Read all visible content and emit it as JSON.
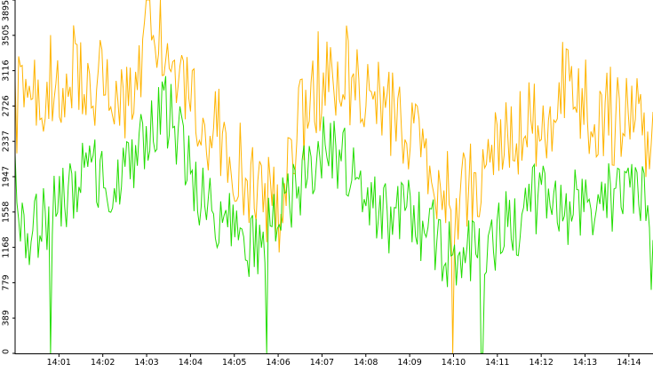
{
  "chart_data": {
    "type": "line",
    "title": "",
    "xlabel": "",
    "ylabel": "",
    "ylim": [
      0,
      3895
    ],
    "y_ticks": [
      "0",
      "389",
      "779",
      "1168",
      "1558",
      "1947",
      "2337",
      "2726",
      "3116",
      "3505",
      "3895"
    ],
    "x_ticks": [
      "14:01",
      "14:02",
      "14:03",
      "14:04",
      "14:05",
      "14:06",
      "14:07",
      "14:08",
      "14:09",
      "14:10",
      "14:11",
      "14:12",
      "14:13",
      "14:14"
    ],
    "x_range_minutes": [
      0,
      14.55
    ],
    "x_tick_minutes": [
      1,
      2,
      3,
      4,
      5,
      6,
      7,
      8,
      9,
      10,
      11,
      12,
      13,
      14
    ],
    "grid": false,
    "legend": "none",
    "colors": {
      "total": "#FFB400",
      "series2": "#22DD00",
      "axis": "#000000",
      "background": "#FFFFFF"
    },
    "series": [
      {
        "color": "#FFB400",
        "anchors_x_minutes": [
          0,
          0.5,
          1,
          1.5,
          2,
          2.5,
          3,
          3.2,
          3.5,
          4,
          4.5,
          5,
          5.5,
          6,
          6.5,
          7,
          7.5,
          8,
          8.5,
          9,
          9.5,
          10,
          10.5,
          11,
          11.5,
          12,
          12.5,
          13,
          13.5,
          14,
          14.55
        ],
        "anchors_y": [
          2700,
          2850,
          3050,
          3100,
          3000,
          2750,
          3500,
          3700,
          3100,
          2700,
          2500,
          2150,
          1700,
          1600,
          2500,
          2900,
          3100,
          2800,
          2650,
          2300,
          2100,
          1700,
          1900,
          2200,
          2450,
          2600,
          2900,
          2750,
          2650,
          2550,
          2450
        ],
        "noise": 550,
        "spikes_min": [
          [
            2.95,
            3650
          ],
          [
            3.05,
            3895
          ],
          [
            6.9,
            3550
          ],
          [
            10.0,
            0
          ]
        ]
      },
      {
        "color": "#22DD00",
        "anchors_x_minutes": [
          0,
          0.3,
          0.6,
          1,
          1.5,
          2,
          2.5,
          3,
          3.2,
          3.5,
          4,
          4.5,
          5,
          5.5,
          6,
          6.5,
          7,
          7.5,
          8,
          8.5,
          9,
          9.5,
          10,
          10.5,
          11,
          11.5,
          12,
          12.5,
          13,
          13.5,
          14,
          14.55
        ],
        "anchors_y": [
          1900,
          1250,
          1450,
          1700,
          2000,
          1950,
          1900,
          2450,
          2650,
          2650,
          2000,
          1550,
          1300,
          1100,
          1500,
          1850,
          2300,
          2150,
          1700,
          1450,
          1500,
          1300,
          1050,
          1100,
          1350,
          1400,
          1800,
          1600,
          1650,
          1700,
          1700,
          1600
        ],
        "noise": 420,
        "spikes_min": [
          [
            0.82,
            0
          ],
          [
            5.75,
            0
          ],
          [
            10.65,
            0
          ],
          [
            14.5,
            700
          ]
        ]
      }
    ]
  }
}
